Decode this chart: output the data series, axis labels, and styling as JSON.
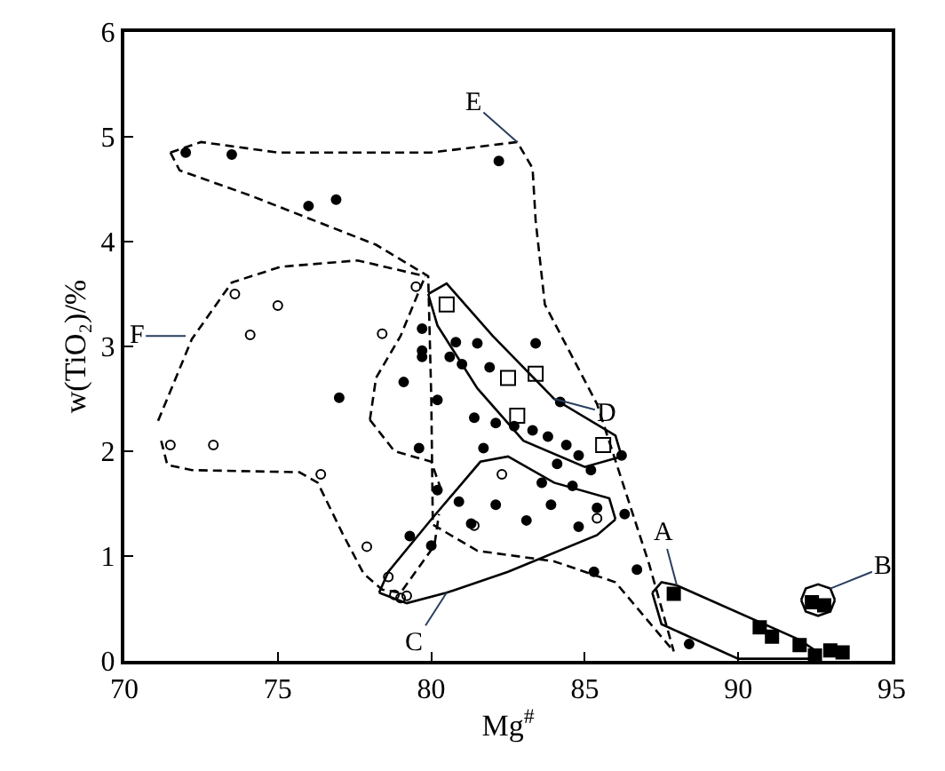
{
  "chart_data": {
    "type": "scatter",
    "xlabel": "Mg$^{#}$",
    "ylabel": "w(TiO₂)/%",
    "xlim": [
      70,
      95
    ],
    "xticks": [
      70,
      75,
      80,
      85,
      90,
      95
    ],
    "ylim": [
      0,
      6
    ],
    "yticks": [
      0,
      1,
      2,
      3,
      4,
      5,
      6
    ],
    "series": [
      {
        "type": "line",
        "color": "#000000",
        "line_style": "dashed",
        "marker": "none",
        "x": [
          71.5,
          72.5,
          75,
          80,
          82.8,
          83.3,
          83.4,
          83.7,
          85.4,
          87.1,
          87.9
        ],
        "values": [
          4.85,
          4.95,
          4.85,
          4.85,
          4.95,
          4.7,
          4.2,
          3.4,
          2.45,
          0.92,
          0.09
        ]
      },
      {
        "type": "line",
        "color": "#000000",
        "line_style": "dashed",
        "marker": "none",
        "x": [
          71.5,
          71.8,
          74.1,
          78.2,
          79.9,
          80.0,
          80.05,
          81.5,
          84,
          86,
          87.9
        ],
        "values": [
          4.85,
          4.68,
          4.44,
          3.97,
          3.67,
          2.5,
          1.3,
          1.05,
          0.95,
          0.75,
          0.09
        ]
      },
      {
        "type": "line",
        "color": "#000000",
        "line_style": "dashed",
        "marker": "none",
        "x": [
          71.1,
          72.2,
          73.5,
          75.1,
          77.6,
          79.8
        ],
        "values": [
          2.29,
          3.07,
          3.61,
          3.76,
          3.82,
          3.67
        ]
      },
      {
        "type": "line",
        "color": "#000000",
        "line_style": "dashed",
        "marker": "none",
        "x": [
          78.0,
          78.2,
          79.0,
          79.8
        ],
        "values": [
          2.3,
          2.7,
          3.1,
          3.67
        ]
      },
      {
        "type": "line",
        "color": "#000000",
        "line_style": "dashed",
        "marker": "none",
        "x": [
          78.0,
          78.8,
          80.0,
          80.3
        ],
        "values": [
          2.3,
          2.0,
          1.9,
          1.65
        ]
      },
      {
        "type": "line",
        "color": "#000000",
        "line_style": "dashed",
        "marker": "none",
        "x": [
          71.2,
          71.4,
          72.2,
          75.7,
          76.3,
          77.1,
          77.8,
          78.4,
          79.0,
          80.1,
          80.25
        ],
        "values": [
          2.1,
          1.87,
          1.82,
          1.8,
          1.7,
          1.22,
          0.83,
          0.68,
          0.65,
          1.1,
          1.4
        ]
      },
      {
        "type": "line",
        "color": "#000000",
        "line_style": "solid",
        "marker": "none",
        "x": [
          79.9,
          80.5,
          82,
          84,
          86,
          86.2
        ],
        "values": [
          3.5,
          3.6,
          3.1,
          2.5,
          2.15,
          1.95
        ]
      },
      {
        "type": "line",
        "color": "#000000",
        "line_style": "solid",
        "marker": "none",
        "x": [
          79.9,
          80.2,
          81.5,
          83,
          85,
          86.2
        ],
        "values": [
          3.5,
          3.2,
          2.6,
          2.1,
          1.85,
          1.95
        ]
      },
      {
        "type": "line",
        "color": "#000000",
        "line_style": "solid",
        "marker": "none",
        "x": [
          78.3,
          78.6,
          80,
          81.6,
          82.5,
          84,
          85.8,
          86
        ],
        "values": [
          0.65,
          0.85,
          1.35,
          1.9,
          1.95,
          1.7,
          1.55,
          1.35
        ]
      },
      {
        "type": "line",
        "color": "#000000",
        "line_style": "solid",
        "marker": "none",
        "x": [
          78.3,
          79.2,
          80.5,
          82.5,
          85.4,
          86
        ],
        "values": [
          0.65,
          0.55,
          0.65,
          0.85,
          1.2,
          1.35
        ]
      },
      {
        "type": "line",
        "color": "#000000",
        "line_style": "solid",
        "marker": "none",
        "x": [
          87.2,
          87.5,
          88,
          92,
          92.5,
          92.6
        ],
        "values": [
          0.65,
          0.75,
          0.72,
          0.2,
          0.1,
          0.02
        ]
      },
      {
        "type": "line",
        "color": "#000000",
        "line_style": "solid",
        "marker": "none",
        "x": [
          87.2,
          87.5,
          90,
          92.6
        ],
        "values": [
          0.65,
          0.35,
          0.02,
          0.02
        ]
      },
      {
        "type": "line",
        "color": "#000000",
        "line_style": "solid",
        "marker": "none",
        "x": [
          92.05,
          92.2,
          92.6,
          93.0,
          93.15
        ],
        "values": [
          0.58,
          0.69,
          0.73,
          0.69,
          0.58
        ]
      },
      {
        "type": "line",
        "color": "#000000",
        "line_style": "solid",
        "marker": "none",
        "x": [
          92.05,
          92.2,
          92.6,
          93.0,
          93.15
        ],
        "values": [
          0.58,
          0.47,
          0.43,
          0.47,
          0.58
        ]
      },
      {
        "color": "#000000",
        "marker": "circle",
        "x": [
          72.0,
          73.5,
          76.0,
          76.9,
          82.2,
          77.0,
          79.7,
          79.7,
          80.8,
          81.5,
          80.6,
          81.0,
          81.9,
          79.7,
          79.1,
          83.4,
          84.2,
          81.4,
          82.1,
          82.7,
          83.3,
          83.8,
          84.4,
          84.8,
          84.1,
          85.2,
          86.2,
          81.7,
          79.6,
          80.2,
          80.9,
          82.1,
          83.1,
          83.9,
          84.8,
          85.4,
          86.3,
          83.6,
          84.6,
          79.3,
          80.0,
          81.3,
          85.3,
          86.7,
          80.2,
          88.4
        ],
        "values": [
          4.85,
          4.83,
          4.34,
          4.4,
          4.77,
          2.51,
          2.96,
          3.17,
          3.04,
          3.03,
          2.9,
          2.83,
          2.8,
          2.9,
          2.66,
          3.03,
          2.47,
          2.32,
          2.27,
          2.24,
          2.2,
          2.14,
          2.06,
          1.96,
          1.88,
          1.82,
          1.96,
          2.03,
          2.03,
          1.63,
          1.52,
          1.49,
          1.34,
          1.49,
          1.28,
          1.46,
          1.4,
          1.7,
          1.67,
          1.19,
          1.1,
          1.31,
          0.85,
          0.87,
          2.49,
          0.16
        ]
      },
      {
        "color": "#000000",
        "marker": "circle-open",
        "x": [
          73.6,
          75.0,
          78.4,
          79.5,
          74.1,
          71.5,
          72.9,
          76.4,
          77.9,
          78.6,
          78.8,
          79.0,
          79.2,
          82.3,
          81.4,
          85.4
        ],
        "values": [
          3.5,
          3.39,
          3.12,
          3.57,
          3.11,
          2.06,
          2.06,
          1.78,
          1.09,
          0.8,
          0.63,
          0.6,
          0.62,
          1.78,
          1.29,
          1.36
        ]
      },
      {
        "color": "#000000",
        "marker": "square-open",
        "x": [
          80.5,
          82.5,
          83.4,
          82.8,
          85.6
        ],
        "values": [
          3.4,
          2.7,
          2.74,
          2.34,
          2.06
        ]
      },
      {
        "color": "#000000",
        "marker": "square",
        "x": [
          87.9,
          90.7,
          91.1,
          92.4,
          92.8,
          92.0,
          92.5,
          93.0,
          93.4
        ],
        "values": [
          0.64,
          0.32,
          0.23,
          0.56,
          0.53,
          0.15,
          0.05,
          0.1,
          0.08
        ]
      }
    ],
    "annotations": [
      {
        "text": "E",
        "x": 82.8,
        "y": 4.95
      },
      {
        "text": "F",
        "x": 72.0,
        "y": 3.1
      },
      {
        "text": "D",
        "x": 84,
        "y": 2.5
      },
      {
        "text": "C",
        "x": 80.5,
        "y": 0.65
      },
      {
        "text": "A",
        "x": 88,
        "y": 0.72
      },
      {
        "text": "B",
        "x": 93.0,
        "y": 0.69
      }
    ]
  }
}
